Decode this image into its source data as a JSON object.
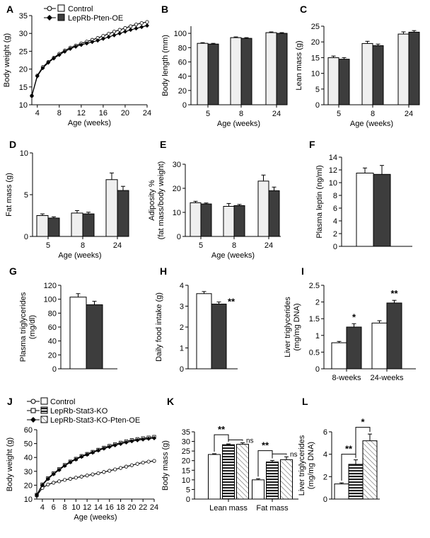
{
  "colors": {
    "control": "#ffffff",
    "pten": "#3d3d3d",
    "light": "#efefef",
    "axis": "#000000"
  },
  "legend_top": {
    "control": "Control",
    "pten": "LepRb-Pten-OE"
  },
  "legend_j": {
    "control": "Control",
    "stat3": "LepRb-Stat3-KO",
    "stat3pten": "LepRb-Stat3-KO-Pten-OE"
  },
  "chart_data": [
    {
      "panel": "A",
      "type": "line",
      "xlabel": "Age (weeks)",
      "ylabel": "Body weight (g)",
      "xlim": [
        3,
        24
      ],
      "ylim": [
        10,
        35
      ],
      "xticks": [
        4,
        8,
        12,
        16,
        20,
        24
      ],
      "yticks": [
        10,
        15,
        20,
        25,
        30,
        35
      ],
      "x": [
        3,
        4,
        5,
        6,
        7,
        8,
        9,
        10,
        11,
        12,
        13,
        14,
        15,
        16,
        17,
        18,
        19,
        20,
        21,
        22,
        23,
        24
      ],
      "series": [
        {
          "name": "Control",
          "values": [
            12.5,
            18.2,
            20.6,
            22.0,
            23.2,
            24.3,
            25.2,
            26.0,
            26.6,
            27.2,
            27.7,
            28.2,
            28.7,
            29.3,
            29.9,
            30.5,
            31.0,
            31.5,
            32.0,
            32.5,
            32.9,
            33.2
          ]
        },
        {
          "name": "LepRb-Pten-OE",
          "values": [
            12.5,
            18.0,
            20.3,
            21.8,
            23.0,
            24.0,
            24.9,
            25.7,
            26.3,
            26.8,
            27.2,
            27.6,
            28.0,
            28.5,
            29.0,
            29.5,
            30.0,
            30.5,
            31.0,
            31.4,
            31.8,
            32.2
          ]
        }
      ]
    },
    {
      "panel": "B",
      "type": "bar",
      "xlabel": "Age (weeks)",
      "ylabel": "Body length (mm)",
      "ylim": [
        0,
        110
      ],
      "yticks": [
        0,
        20,
        40,
        60,
        80,
        100
      ],
      "categories": [
        "5",
        "8",
        "24"
      ],
      "series": [
        {
          "name": "Control",
          "values": [
            86,
            94,
            101
          ],
          "err": [
            1,
            1,
            1
          ]
        },
        {
          "name": "LepRb-Pten-OE",
          "values": [
            85,
            93,
            100
          ],
          "err": [
            1,
            1,
            1
          ]
        }
      ]
    },
    {
      "panel": "C",
      "type": "bar",
      "xlabel": "Age (weeks)",
      "ylabel": "Lean mass (g)",
      "ylim": [
        0,
        25
      ],
      "yticks": [
        0,
        5,
        10,
        15,
        20,
        25
      ],
      "categories": [
        "5",
        "8",
        "24"
      ],
      "series": [
        {
          "name": "Control",
          "values": [
            15,
            19.5,
            22.5
          ],
          "err": [
            0.5,
            0.7,
            0.7
          ]
        },
        {
          "name": "LepRb-Pten-OE",
          "values": [
            14.5,
            18.8,
            23.1
          ],
          "err": [
            0.5,
            0.5,
            0.5
          ]
        }
      ]
    },
    {
      "panel": "D",
      "type": "bar",
      "xlabel": "Age (weeks)",
      "ylabel": "Fat mass (g)",
      "ylim": [
        0,
        10
      ],
      "yticks": [
        0,
        5,
        10
      ],
      "categories": [
        "5",
        "8",
        "24"
      ],
      "series": [
        {
          "name": "Control",
          "values": [
            2.5,
            2.8,
            6.8
          ],
          "err": [
            0.2,
            0.3,
            0.8
          ]
        },
        {
          "name": "LepRb-Pten-OE",
          "values": [
            2.2,
            2.7,
            5.5
          ],
          "err": [
            0.15,
            0.2,
            0.5
          ]
        }
      ]
    },
    {
      "panel": "E",
      "type": "bar",
      "xlabel": "Age (weeks)",
      "ylabel": "Adiposity %",
      "ylabel2": "(fat mass/body weight)",
      "ylim": [
        0,
        30
      ],
      "yticks": [
        0,
        10,
        20,
        30
      ],
      "categories": [
        "5",
        "8",
        "24"
      ],
      "series": [
        {
          "name": "Control",
          "values": [
            14,
            12.5,
            23
          ],
          "err": [
            0.6,
            1.2,
            2.5
          ]
        },
        {
          "name": "LepRb-Pten-OE",
          "values": [
            13.5,
            12.8,
            19
          ],
          "err": [
            0.4,
            0.5,
            1.5
          ]
        }
      ]
    },
    {
      "panel": "F",
      "type": "bar",
      "xlabel": "",
      "ylabel": "Plasma leptin (ng/ml)",
      "ylim": [
        0,
        14
      ],
      "yticks": [
        0,
        2,
        4,
        6,
        8,
        10,
        12,
        14
      ],
      "categories": [
        ""
      ],
      "series": [
        {
          "name": "Control",
          "values": [
            11.5
          ],
          "err": [
            0.8
          ]
        },
        {
          "name": "LepRb-Pten-OE",
          "values": [
            11.3
          ],
          "err": [
            1.4
          ]
        }
      ]
    },
    {
      "panel": "G",
      "type": "bar",
      "xlabel": "",
      "ylabel": "Plasma triglycerides",
      "ylabel2": "(mg/dl)",
      "ylim": [
        0,
        120
      ],
      "yticks": [
        0,
        20,
        40,
        60,
        80,
        100,
        120
      ],
      "categories": [
        ""
      ],
      "series": [
        {
          "name": "Control",
          "values": [
            103
          ],
          "err": [
            5
          ]
        },
        {
          "name": "LepRb-Pten-OE",
          "values": [
            92
          ],
          "err": [
            5
          ]
        }
      ]
    },
    {
      "panel": "H",
      "type": "bar",
      "xlabel": "",
      "ylabel": "Daily food intake (g)",
      "ylim": [
        0,
        4
      ],
      "yticks": [
        0,
        1,
        2,
        3,
        4
      ],
      "categories": [
        ""
      ],
      "series": [
        {
          "name": "Control",
          "values": [
            3.6
          ],
          "err": [
            0.1
          ]
        },
        {
          "name": "LepRb-Pten-OE",
          "values": [
            3.1
          ],
          "err": [
            0.1
          ]
        }
      ],
      "significance": [
        "",
        "**"
      ]
    },
    {
      "panel": "I",
      "type": "bar",
      "xlabel": "",
      "ylabel": "Liver triglycerides",
      "ylabel2": "(mg/mg DNA)",
      "ylim": [
        0,
        2.5
      ],
      "yticks": [
        0,
        0.5,
        1,
        1.5,
        2,
        2.5
      ],
      "categories": [
        "8-weeks",
        "24-weeks"
      ],
      "series": [
        {
          "name": "Control",
          "values": [
            0.78,
            1.37
          ],
          "err": [
            0.04,
            0.07
          ]
        },
        {
          "name": "LepRb-Pten-OE",
          "values": [
            1.25,
            1.97
          ],
          "err": [
            0.1,
            0.08
          ]
        }
      ],
      "significance": [
        "*",
        "**"
      ]
    },
    {
      "panel": "J",
      "type": "line",
      "xlabel": "Age (weeks)",
      "ylabel": "Body weight (g)",
      "xlim": [
        3,
        24
      ],
      "ylim": [
        10,
        60
      ],
      "xticks": [
        4,
        6,
        8,
        10,
        12,
        14,
        16,
        18,
        20,
        22,
        24
      ],
      "yticks": [
        10,
        20,
        30,
        40,
        50,
        60
      ],
      "x": [
        3,
        4,
        5,
        6,
        7,
        8,
        9,
        10,
        11,
        12,
        13,
        14,
        15,
        16,
        17,
        18,
        19,
        20,
        21,
        22,
        23,
        24
      ],
      "series": [
        {
          "name": "Control",
          "values": [
            12.5,
            18,
            20.5,
            21.8,
            22.8,
            23.8,
            24.6,
            25.4,
            26.2,
            27,
            27.8,
            28.6,
            29.5,
            30.4,
            31.4,
            32.4,
            33.4,
            34.4,
            35.4,
            36.3,
            37,
            37.5
          ]
        },
        {
          "name": "LepRb-Stat3-KO",
          "values": [
            13,
            20.5,
            25,
            28.5,
            31.5,
            34.5,
            37,
            39,
            41,
            42.5,
            44,
            45.5,
            47,
            48.3,
            49.5,
            50.6,
            51.6,
            52.5,
            53.2,
            53.8,
            54.3,
            54.8
          ]
        },
        {
          "name": "LepRb-Stat3-KO-Pten-OE",
          "values": [
            13,
            20,
            24.5,
            28,
            31,
            34,
            36.5,
            38.5,
            40.5,
            42,
            43.5,
            45,
            46.4,
            47.6,
            48.8,
            49.8,
            50.8,
            51.7,
            52.4,
            53,
            53.5,
            53.9
          ]
        }
      ]
    },
    {
      "panel": "K",
      "type": "bar",
      "xlabel": "",
      "ylabel": "Body mass (g)",
      "ylim": [
        0,
        35
      ],
      "yticks": [
        0,
        5,
        10,
        15,
        20,
        25,
        30,
        35
      ],
      "categories": [
        "Lean mass",
        "Fat mass"
      ],
      "series": [
        {
          "name": "Control",
          "values": [
            23.2,
            10
          ],
          "err": [
            0.4,
            0.6
          ]
        },
        {
          "name": "LepRb-Stat3-KO",
          "values": [
            28.3,
            19.3
          ],
          "err": [
            0.4,
            0.8
          ]
        },
        {
          "name": "LepRb-Stat3-KO-Pten-OE",
          "values": [
            28.5,
            20.5
          ],
          "err": [
            0.8,
            1.5
          ]
        }
      ],
      "brackets": [
        "**",
        "ns",
        "**",
        "ns"
      ]
    },
    {
      "panel": "L",
      "type": "bar",
      "xlabel": "",
      "ylabel": "Liver triglycerides",
      "ylabel2": "(mg/mg DNA)",
      "ylim": [
        0,
        6
      ],
      "yticks": [
        0,
        2,
        4,
        6
      ],
      "categories": [
        ""
      ],
      "series": [
        {
          "name": "Control",
          "values": [
            1.35
          ],
          "err": [
            0.1
          ]
        },
        {
          "name": "LepRb-Stat3-KO",
          "values": [
            3.1
          ],
          "err": [
            0.4
          ]
        },
        {
          "name": "LepRb-Stat3-KO-Pten-OE",
          "values": [
            5.2
          ],
          "err": [
            0.6
          ]
        }
      ],
      "brackets": [
        "**",
        "*"
      ]
    }
  ]
}
